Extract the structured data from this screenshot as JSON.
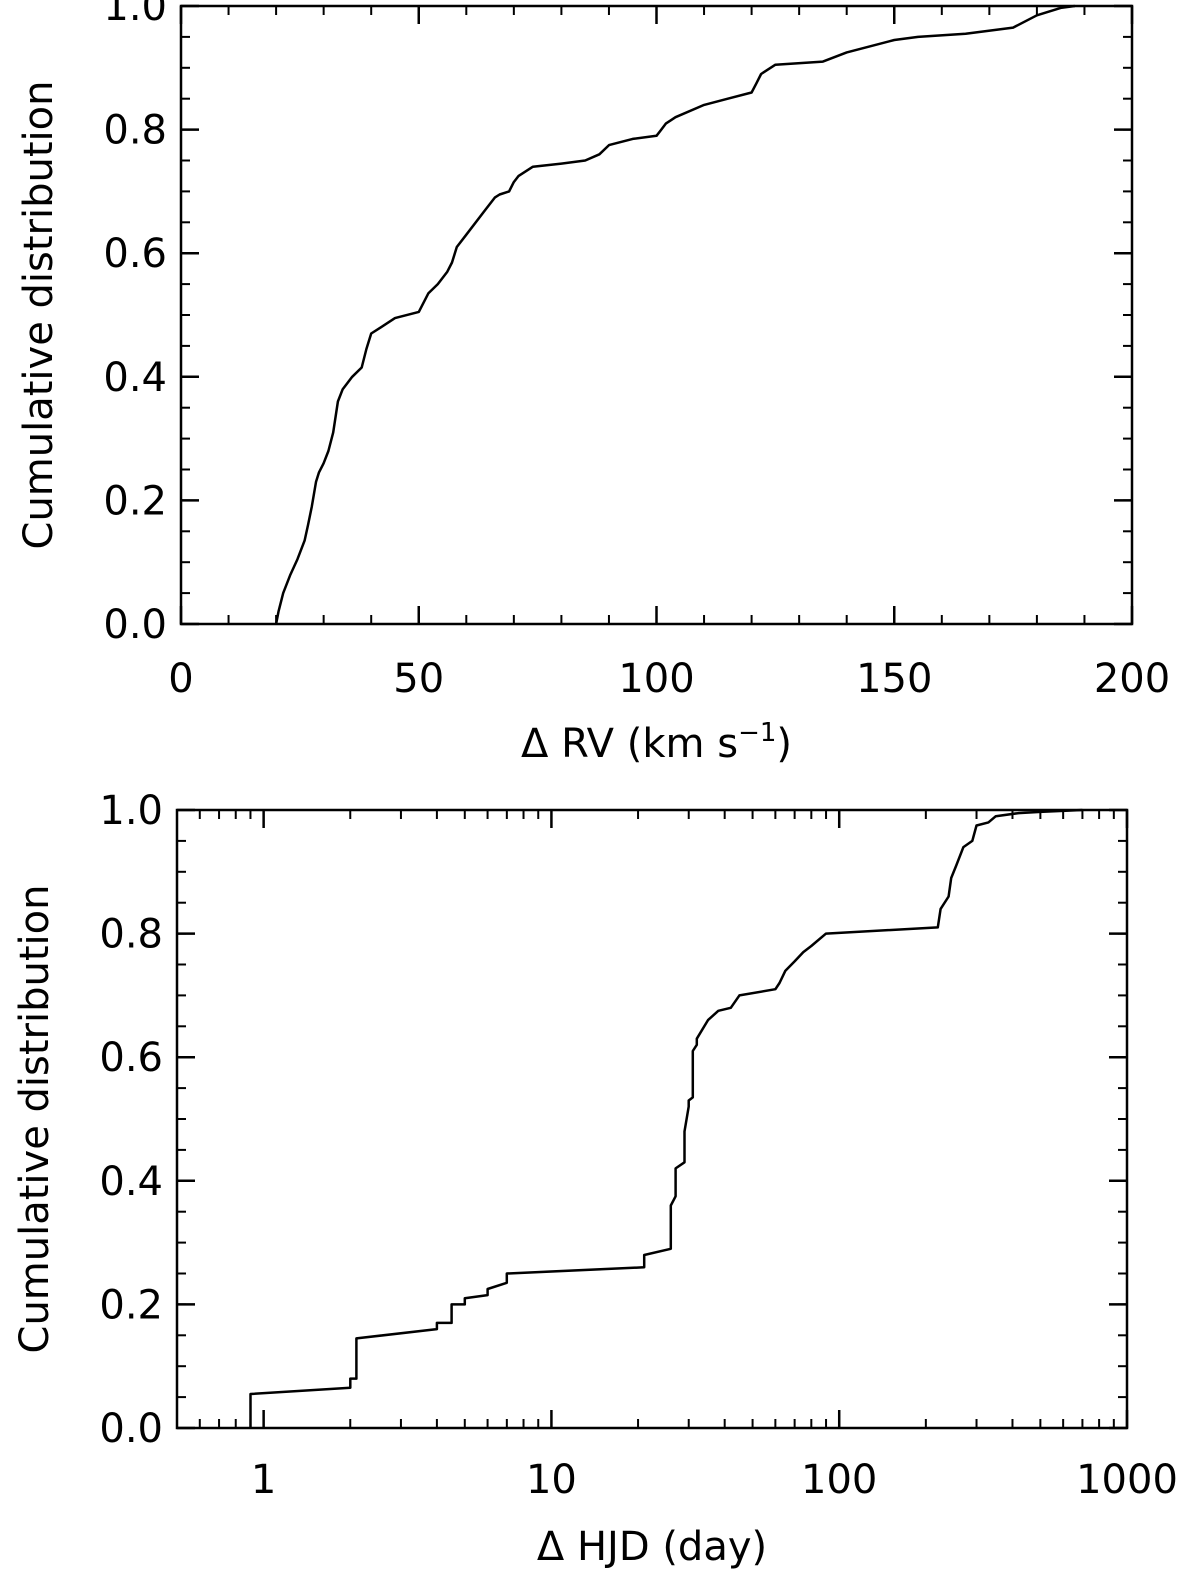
{
  "chart_data": [
    {
      "type": "line",
      "title": "",
      "xlabel": "Δ RV (km s",
      "xlabel_superscript": "−1",
      "xlabel_suffix": ")",
      "ylabel": "Cumulative distribution",
      "xscale": "linear",
      "xlim": [
        0,
        200
      ],
      "ylim": [
        0,
        1
      ],
      "xticks": [
        0,
        50,
        100,
        150,
        200
      ],
      "xtick_labels": [
        "0",
        "50",
        "100",
        "150",
        "200"
      ],
      "yticks": [
        0,
        0.2,
        0.4,
        0.6,
        0.8,
        1.0
      ],
      "ytick_labels": [
        "0.0",
        "0.2",
        "0.4",
        "0.6",
        "0.8",
        "1.0"
      ],
      "grid": false,
      "series": [
        {
          "x": [
            20.0,
            20.5,
            21.5,
            23,
            24.5,
            26,
            26.7,
            27.5,
            28.4,
            29,
            30,
            31,
            32,
            33,
            34,
            36,
            38,
            39,
            40,
            42,
            45,
            50,
            52,
            54,
            56,
            57,
            58,
            60,
            64,
            66,
            67,
            69,
            70,
            71,
            74,
            80,
            85,
            88,
            90,
            95,
            100,
            101,
            102,
            103,
            104,
            110,
            115,
            120,
            121,
            122,
            125,
            135,
            140,
            150,
            155,
            165,
            175,
            180,
            185,
            188
          ],
          "y": [
            0.0,
            0.02,
            0.05,
            0.08,
            0.105,
            0.135,
            0.16,
            0.19,
            0.23,
            0.245,
            0.26,
            0.28,
            0.31,
            0.36,
            0.38,
            0.4,
            0.415,
            0.445,
            0.47,
            0.48,
            0.495,
            0.505,
            0.535,
            0.55,
            0.57,
            0.585,
            0.61,
            0.63,
            0.67,
            0.69,
            0.695,
            0.7,
            0.715,
            0.725,
            0.74,
            0.745,
            0.75,
            0.76,
            0.775,
            0.785,
            0.79,
            0.8,
            0.81,
            0.815,
            0.82,
            0.84,
            0.85,
            0.86,
            0.875,
            0.89,
            0.905,
            0.91,
            0.925,
            0.945,
            0.95,
            0.955,
            0.965,
            0.985,
            0.997,
            1.0
          ]
        }
      ]
    },
    {
      "type": "line",
      "title": "",
      "xlabel": "Δ HJD (day)",
      "ylabel": "Cumulative distribution",
      "xscale": "log",
      "xlim": [
        0.5,
        1000
      ],
      "ylim": [
        0,
        1
      ],
      "xticks": [
        1,
        10,
        100,
        1000
      ],
      "xtick_labels": [
        "1",
        "10",
        "100",
        "1000"
      ],
      "yticks": [
        0,
        0.2,
        0.4,
        0.6,
        0.8,
        1.0
      ],
      "ytick_labels": [
        "0.0",
        "0.2",
        "0.4",
        "0.6",
        "0.8",
        "1.0"
      ],
      "grid": false,
      "series": [
        {
          "x": [
            0.9,
            0.9,
            2.0,
            2.0,
            2.1,
            2.1,
            4.0,
            4.0,
            4.5,
            4.5,
            5.0,
            5.0,
            6.0,
            6.0,
            7.0,
            7.0,
            21,
            21,
            26,
            26,
            27,
            27,
            29,
            29,
            30,
            30,
            31,
            31,
            32,
            32,
            35,
            38,
            42,
            45,
            60,
            62,
            65,
            70,
            75,
            80,
            90,
            220,
            225,
            240,
            245,
            255,
            270,
            290,
            300,
            330,
            350,
            420,
            500,
            700
          ],
          "y": [
            0.0,
            0.055,
            0.065,
            0.08,
            0.08,
            0.145,
            0.16,
            0.17,
            0.17,
            0.2,
            0.2,
            0.21,
            0.215,
            0.225,
            0.235,
            0.25,
            0.26,
            0.28,
            0.29,
            0.36,
            0.375,
            0.42,
            0.43,
            0.48,
            0.52,
            0.53,
            0.535,
            0.61,
            0.62,
            0.63,
            0.66,
            0.675,
            0.68,
            0.7,
            0.71,
            0.72,
            0.74,
            0.755,
            0.77,
            0.78,
            0.8,
            0.81,
            0.84,
            0.86,
            0.89,
            0.91,
            0.94,
            0.95,
            0.975,
            0.98,
            0.99,
            0.995,
            0.997,
            1.0
          ]
        }
      ]
    }
  ]
}
